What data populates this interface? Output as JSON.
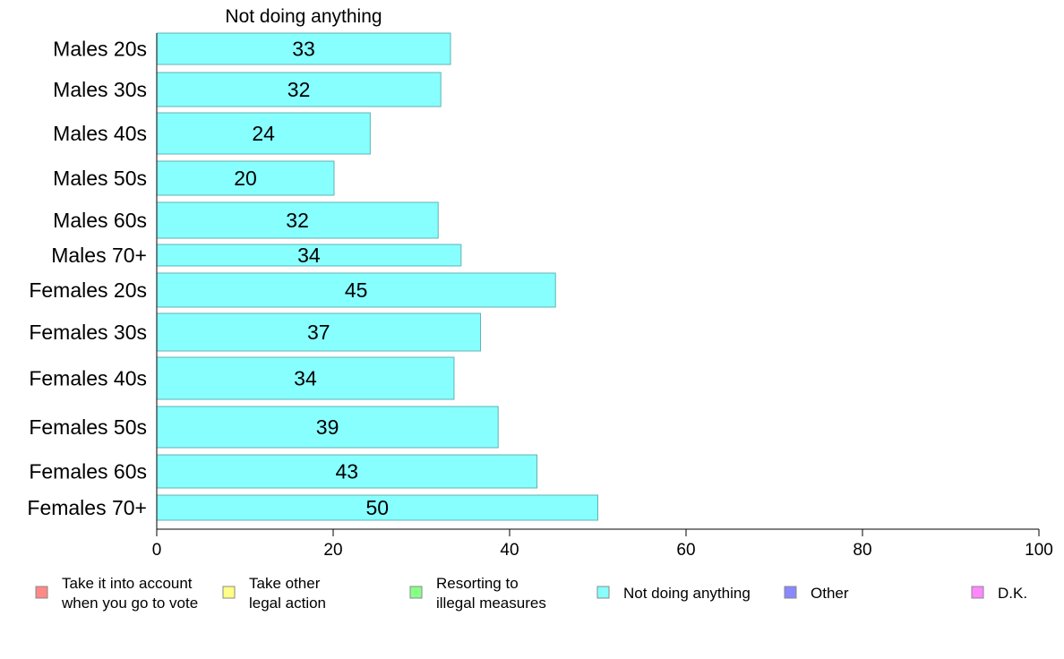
{
  "chart_data": {
    "type": "bar",
    "orientation": "horizontal",
    "title": "Not doing anything",
    "categories": [
      "Males 20s",
      "Males 30s",
      "Males 40s",
      "Males 50s",
      "Males 60s",
      "Males 70+",
      "Females 20s",
      "Females 30s",
      "Females 40s",
      "Females 50s",
      "Females 60s",
      "Females 70+"
    ],
    "values": [
      33.3,
      32.2,
      24.2,
      20.1,
      31.9,
      34.5,
      45.2,
      36.7,
      33.7,
      38.7,
      43.1,
      50.0
    ],
    "value_labels": [
      "33",
      "32",
      "24",
      "20",
      "32",
      "34",
      "45",
      "37",
      "34",
      "39",
      "43",
      "50"
    ],
    "xlim": [
      0,
      100
    ],
    "xticks": [
      "0",
      "20",
      "40",
      "60",
      "80",
      "100"
    ],
    "bar_color": "#88ffff",
    "bar_edge_color": "#5fb3b3",
    "legend_position": "bottom",
    "legend": [
      {
        "label": "Take it into account when you go to vote",
        "lines": [
          "Take it into account",
          "when you go to vote"
        ],
        "color": "#ff8888"
      },
      {
        "label": "Take other legal action",
        "lines": [
          "Take other",
          "legal action"
        ],
        "color": "#ffff88"
      },
      {
        "label": "Resorting to illegal measures",
        "lines": [
          "Resorting to",
          "illegal measures"
        ],
        "color": "#88ff88"
      },
      {
        "label": "Not doing anything",
        "lines": [
          "Not doing anything"
        ],
        "color": "#88ffff"
      },
      {
        "label": "Other",
        "lines": [
          "Other"
        ],
        "color": "#8888ff"
      },
      {
        "label": "D.K.",
        "lines": [
          "D.K."
        ],
        "color": "#ff88ff"
      }
    ]
  }
}
